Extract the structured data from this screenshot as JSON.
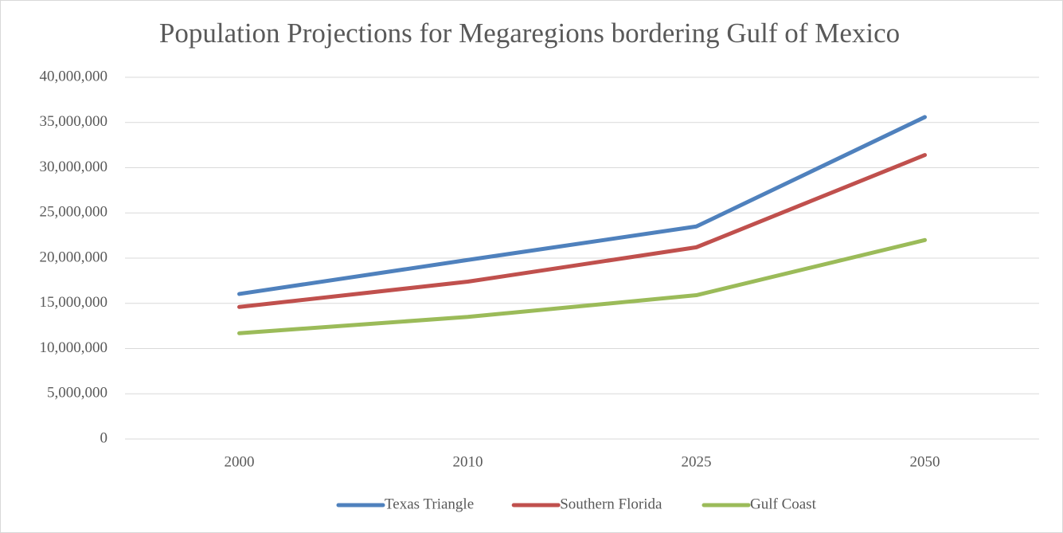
{
  "chart_data": {
    "type": "line",
    "title": "Population Projections for Megaregions bordering Gulf of Mexico",
    "categories": [
      "2000",
      "2010",
      "2025",
      "2050"
    ],
    "series": [
      {
        "name": "Texas Triangle",
        "color": "#4f81bd",
        "values": [
          16040000,
          19800000,
          23500000,
          35600000
        ]
      },
      {
        "name": "Southern Florida",
        "color": "#c0504d",
        "values": [
          14600000,
          17400000,
          21200000,
          31400000
        ]
      },
      {
        "name": "Gulf Coast",
        "color": "#9bbb59",
        "values": [
          11700000,
          13500000,
          15900000,
          22000000
        ]
      }
    ],
    "ylim": [
      0,
      40000000
    ],
    "yticks": [
      0,
      {
        "value": 5000000,
        "label": "5,000,000"
      },
      {
        "value": 10000000,
        "label": "10,000,000"
      },
      {
        "value": 15000000,
        "label": "15,000,000"
      },
      {
        "value": 20000000,
        "label": "20,000,000"
      },
      {
        "value": 25000000,
        "label": "25,000,000"
      },
      {
        "value": 30000000,
        "label": "30,000,000"
      },
      {
        "value": 35000000,
        "label": "35,000,000"
      },
      {
        "value": 40000000,
        "label": "40,000,000"
      }
    ],
    "grid": true,
    "legend": "bottom"
  }
}
